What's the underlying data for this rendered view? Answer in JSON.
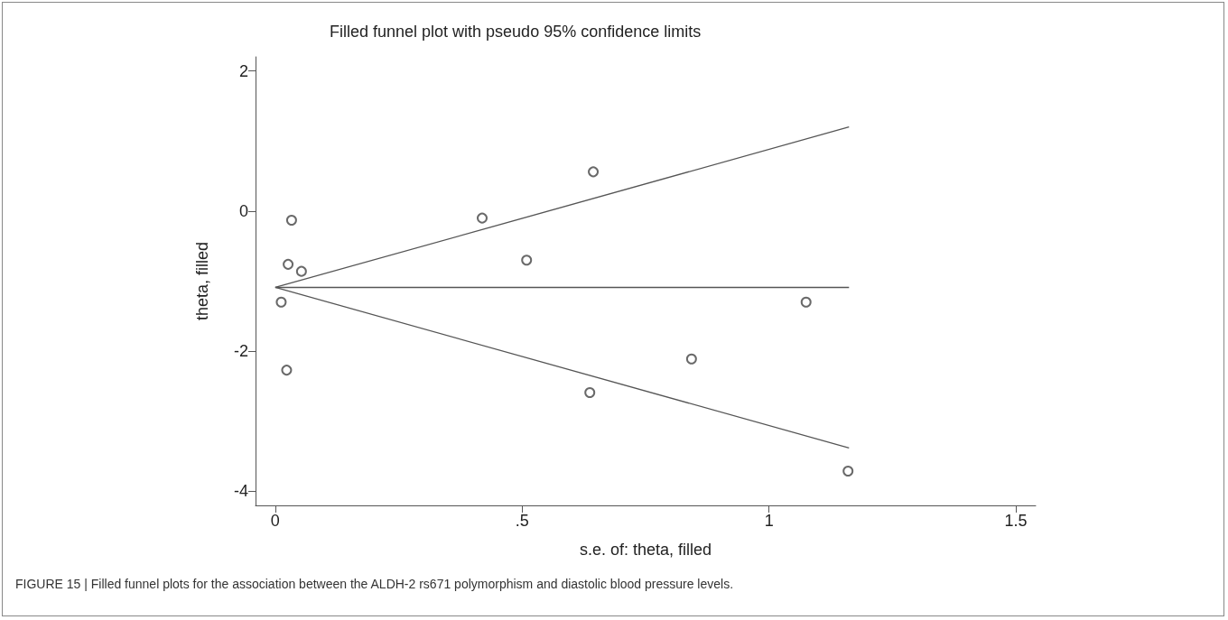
{
  "chart_data": {
    "type": "scatter",
    "title": "Filled funnel plot with pseudo 95% confidence limits",
    "xlabel": "s.e. of: theta, filled",
    "ylabel": "theta, filled",
    "annotations": [
      "FIGURE 15 | Filled funnel plots for the association between the ALDH-2 rs671 polymorphism and diastolic blood pressure levels."
    ],
    "xlim": [
      -0.04,
      1.54
    ],
    "xticks": [
      0,
      {
        "value": 0.5,
        "label": ".5"
      },
      1,
      1.5
    ],
    "ylim": [
      -4.2,
      2.2
    ],
    "yticks": [
      -4,
      -2,
      0,
      2
    ],
    "grid": false,
    "series": [
      {
        "marker": "circle",
        "color": "#444444",
        "x": [
          0.012,
          0.023,
          0.026,
          0.033,
          0.053,
          0.419,
          0.509,
          0.644,
          0.637,
          0.843,
          1.075,
          1.16
        ],
        "values": [
          -1.3,
          -2.27,
          -0.76,
          -0.13,
          -0.86,
          -0.1,
          -0.7,
          0.56,
          -2.59,
          -2.11,
          -1.3,
          -3.71
        ]
      },
      {
        "type": "line",
        "color": "#555555",
        "line_style": "solid",
        "marker": "none",
        "x": [
          0,
          1.162
        ],
        "values": [
          -1.09,
          1.2
        ]
      },
      {
        "type": "line",
        "color": "#555555",
        "line_style": "solid",
        "marker": "none",
        "x": [
          0,
          1.162
        ],
        "values": [
          -1.09,
          -1.09
        ]
      },
      {
        "type": "line",
        "color": "#555555",
        "line_style": "solid",
        "marker": "none",
        "x": [
          0,
          1.162
        ],
        "values": [
          -1.09,
          -3.38
        ]
      }
    ]
  }
}
